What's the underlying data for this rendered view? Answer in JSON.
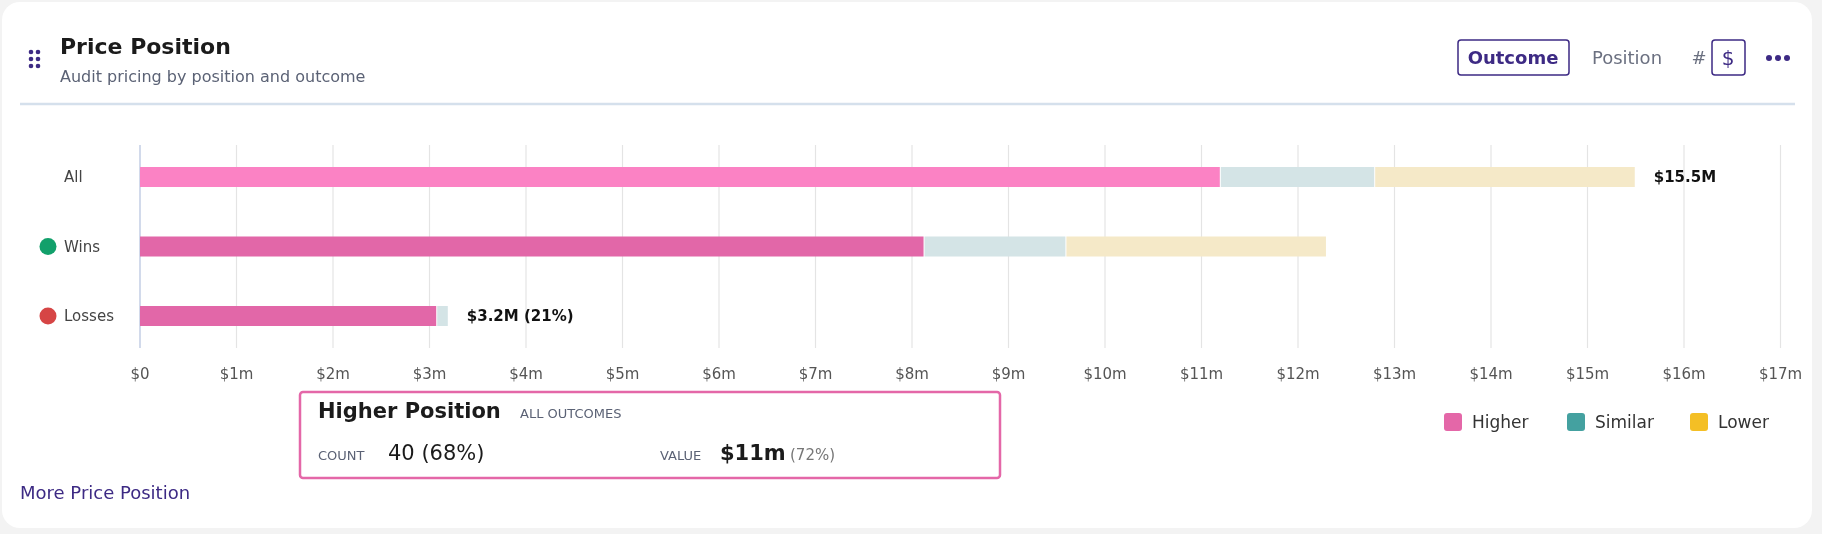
{
  "chart_data": {
    "type": "bar",
    "orientation": "horizontal",
    "stacked": true,
    "title": "Price Position",
    "subtitle": "Audit pricing by position and outcome",
    "categories": [
      "All",
      "Wins",
      "Losses"
    ],
    "series": [
      {
        "name": "Higher",
        "color": "#e467a8",
        "colors": [
          "#fb82c4",
          "#e267a8",
          "#e267a8"
        ],
        "values": [
          11.2,
          8.13,
          3.08
        ]
      },
      {
        "name": "Similar",
        "color": "#44a1a0",
        "colors": [
          "#d4e4e6",
          "#d4e4e6",
          "#d4e4e6"
        ],
        "values": [
          1.6,
          1.47,
          0.12
        ]
      },
      {
        "name": "Lower",
        "color": "#f4bf25",
        "colors": [
          "#f5e9c8",
          "#f5e9c8",
          "#f5e9c8"
        ],
        "values": [
          2.7,
          2.7,
          0
        ]
      }
    ],
    "totals": [
      "$15.5M",
      null,
      "$3.2M (21%)"
    ],
    "xlim": [
      0,
      17
    ],
    "xticks": [
      {
        "value": 0,
        "label": "$0"
      },
      {
        "value": 1,
        "label": "$1m"
      },
      {
        "value": 2,
        "label": "$2m"
      },
      {
        "value": 3,
        "label": "$3m"
      },
      {
        "value": 4,
        "label": "$4m"
      },
      {
        "value": 5,
        "label": "$5m"
      },
      {
        "value": 6,
        "label": "$6m"
      },
      {
        "value": 7,
        "label": "$7m"
      },
      {
        "value": 8,
        "label": "$8m"
      },
      {
        "value": 9,
        "label": "$9m"
      },
      {
        "value": 10,
        "label": "$10m"
      },
      {
        "value": 11,
        "label": "$11m"
      },
      {
        "value": 12,
        "label": "$12m"
      },
      {
        "value": 13,
        "label": "$13m"
      },
      {
        "value": 14,
        "label": "$14m"
      },
      {
        "value": 15,
        "label": "$15m"
      },
      {
        "value": 16,
        "label": "$16m"
      },
      {
        "value": 17,
        "label": "$17m"
      }
    ],
    "grid": "x",
    "legend": "bottom right",
    "annotations": [
      "Higher Position",
      "ALL OUTCOMES",
      "COUNT",
      "40 (68%)",
      "VALUE",
      "$11m",
      "(72%)",
      "Outcome",
      "Position",
      "#",
      "$",
      "More Price Position"
    ]
  }
}
